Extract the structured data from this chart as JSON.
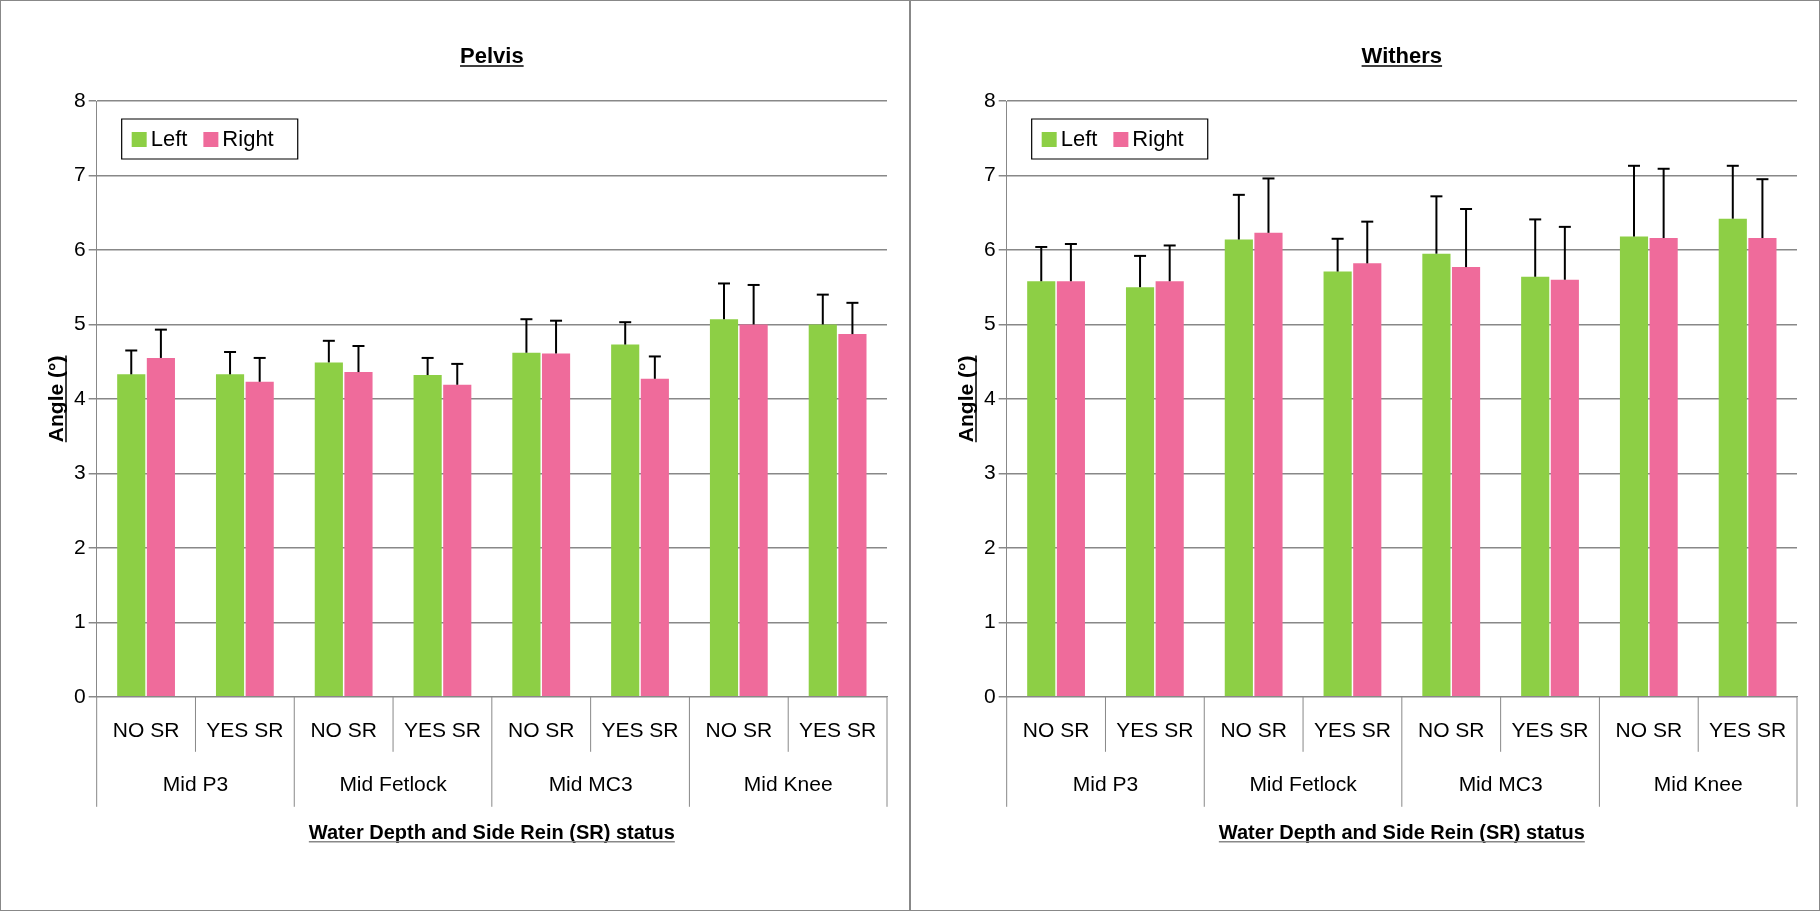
{
  "chart_data": [
    {
      "type": "bar",
      "title": "Pelvis",
      "xlabel": "Water Depth and Side Rein (SR) status",
      "ylabel": "Angle (°)",
      "categories": [
        "NO SR",
        "YES SR",
        "NO SR",
        "YES SR",
        "NO SR",
        "YES SR",
        "NO SR",
        "YES SR"
      ],
      "annotations": [
        "Mid P3",
        "Mid Fetlock",
        "Mid MC3",
        "Mid Knee"
      ],
      "ylim": [
        0,
        8
      ],
      "yticks": [
        0,
        1,
        2,
        3,
        4,
        5,
        6,
        7,
        8
      ],
      "grid": "y",
      "legend": "top left",
      "series": [
        {
          "name": "Left",
          "color": "#8dcf45",
          "values": [
            4.33,
            4.33,
            4.49,
            4.32,
            4.62,
            4.73,
            5.07,
            5.0
          ],
          "errors": [
            [
              4.33,
              4.65
            ],
            [
              4.33,
              4.63
            ],
            [
              4.49,
              4.78
            ],
            [
              4.32,
              4.55
            ],
            [
              4.62,
              5.07
            ],
            [
              4.73,
              5.03
            ],
            [
              5.07,
              5.55
            ],
            [
              5.0,
              5.4
            ]
          ]
        },
        {
          "name": "Right",
          "color": "#ef6b9b",
          "values": [
            4.55,
            4.23,
            4.36,
            4.19,
            4.61,
            4.27,
            5.0,
            4.87
          ],
          "errors": [
            [
              4.55,
              4.93
            ],
            [
              4.23,
              4.55
            ],
            [
              4.36,
              4.71
            ],
            [
              4.19,
              4.47
            ],
            [
              4.61,
              5.05
            ],
            [
              4.27,
              4.57
            ],
            [
              5.0,
              5.53
            ],
            [
              4.87,
              5.29
            ]
          ]
        }
      ]
    },
    {
      "type": "bar",
      "title": "Withers",
      "xlabel": "Water Depth and Side Rein (SR) status",
      "ylabel": "Angle (°)",
      "categories": [
        "NO SR",
        "YES SR",
        "NO SR",
        "YES SR",
        "NO SR",
        "YES SR",
        "NO SR",
        "YES SR"
      ],
      "annotations": [
        "Mid P3",
        "Mid Fetlock",
        "Mid MC3",
        "Mid Knee"
      ],
      "ylim": [
        0,
        8
      ],
      "yticks": [
        0,
        1,
        2,
        3,
        4,
        5,
        6,
        7,
        8
      ],
      "grid": "y",
      "legend": "top left",
      "series": [
        {
          "name": "Left",
          "color": "#8dcf45",
          "values": [
            5.58,
            5.5,
            6.14,
            5.71,
            5.95,
            5.64,
            6.18,
            6.42
          ],
          "errors": [
            [
              5.58,
              6.04
            ],
            [
              5.5,
              5.92
            ],
            [
              6.14,
              6.74
            ],
            [
              5.71,
              6.15
            ],
            [
              5.95,
              6.72
            ],
            [
              5.64,
              6.41
            ],
            [
              6.18,
              7.13
            ],
            [
              6.42,
              7.13
            ]
          ]
        },
        {
          "name": "Right",
          "color": "#ef6b9b",
          "values": [
            5.58,
            5.58,
            6.23,
            5.82,
            5.77,
            5.6,
            6.16,
            6.16
          ],
          "errors": [
            [
              5.58,
              6.08
            ],
            [
              5.58,
              6.06
            ],
            [
              6.23,
              6.96
            ],
            [
              5.82,
              6.38
            ],
            [
              5.77,
              6.55
            ],
            [
              5.6,
              6.31
            ],
            [
              6.16,
              7.09
            ],
            [
              6.16,
              6.95
            ]
          ]
        }
      ]
    }
  ]
}
